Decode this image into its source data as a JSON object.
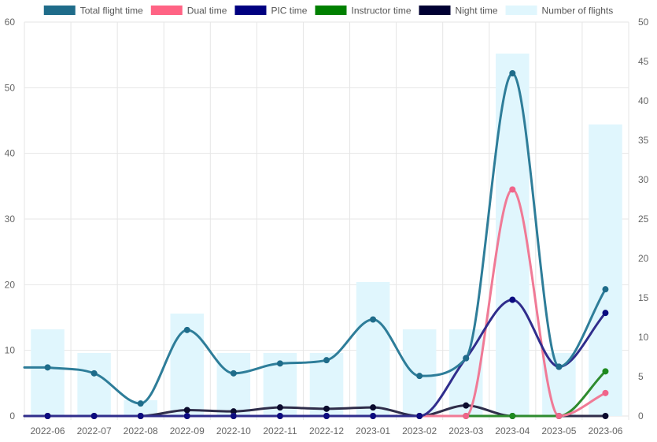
{
  "chart_data": {
    "type": "line",
    "title": "",
    "xlabel": "",
    "ylabel": "",
    "ylabel_right": "",
    "categories": [
      "2022-06",
      "2022-07",
      "2022-08",
      "2022-09",
      "2022-10",
      "2022-11",
      "2022-12",
      "2023-01",
      "2023-02",
      "2023-03",
      "2023-04",
      "2023-05",
      "2023-06"
    ],
    "ylim": [
      0,
      60
    ],
    "y2lim": [
      0,
      50
    ],
    "yticks": [
      0,
      10,
      20,
      30,
      40,
      50,
      60
    ],
    "y2ticks": [
      0,
      5,
      10,
      15,
      20,
      25,
      30,
      35,
      40,
      45,
      50
    ],
    "grid": true,
    "legend_position": "top",
    "line_series": [
      {
        "name": "Total flight time",
        "color": "#2e7d99",
        "legend_color": "#1f6c8a",
        "point_color": "#1f6c8a",
        "values": [
          7.4,
          6.5,
          1.9,
          13.1,
          6.5,
          8.0,
          8.5,
          14.7,
          6.1,
          8.8,
          52.2,
          7.5,
          19.3
        ]
      },
      {
        "name": "Dual time",
        "color": "#f07a96",
        "legend_color": "#ff6384",
        "point_color": "#f0648a",
        "values": [
          0,
          0,
          0,
          0,
          0,
          0,
          0,
          0,
          0,
          0,
          34.5,
          0,
          3.5
        ]
      },
      {
        "name": "PIC time",
        "color": "#302d8c",
        "legend_color": "#000080",
        "point_color": "#0b0b80",
        "values": [
          0,
          0,
          0,
          0,
          0,
          0,
          0,
          0,
          0,
          8.8,
          17.7,
          7.5,
          15.7
        ]
      },
      {
        "name": "Instructor time",
        "color": "#2e8b2e",
        "legend_color": "#008000",
        "point_color": "#1e8a1e",
        "values": [
          0,
          0,
          0,
          0,
          0,
          0,
          0,
          0,
          0,
          0,
          0,
          0,
          6.8
        ]
      },
      {
        "name": "Night time",
        "color": "#2f2d4a",
        "legend_color": "#000033",
        "point_color": "#0b0b2e",
        "values": [
          0,
          0,
          0,
          0.9,
          0.7,
          1.3,
          1.1,
          1.3,
          0,
          1.6,
          0,
          0,
          0
        ]
      }
    ],
    "bar_series": {
      "name": "Number of flights",
      "axis": "right",
      "color": "#e0f6fd",
      "legend_color": "#e0f6fd",
      "values": [
        11,
        8,
        2,
        13,
        8,
        8,
        8,
        17,
        11,
        11,
        46,
        8,
        37
      ]
    }
  }
}
